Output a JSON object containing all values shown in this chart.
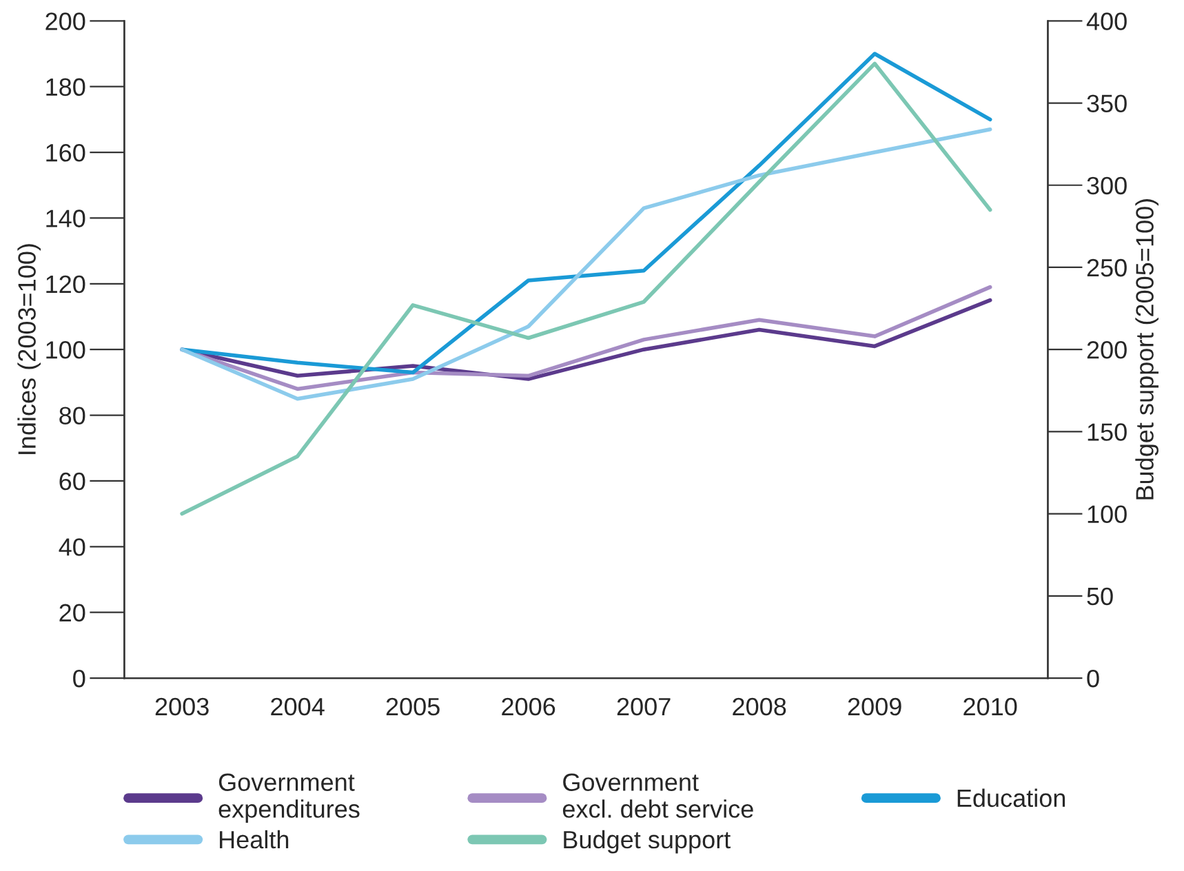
{
  "chart_data": {
    "type": "line",
    "ylabel": "Indices (2003=100)",
    "y2label": "Budget support (2005=100)",
    "categories": [
      "2003",
      "2004",
      "2005",
      "2006",
      "2007",
      "2008",
      "2009",
      "2010"
    ],
    "series": [
      {
        "name": "Government\nexpenditures",
        "color": "#5b3a8c",
        "values": [
          100,
          92,
          95,
          91,
          100,
          106,
          101,
          115
        ]
      },
      {
        "name": "Government\nexcl. debt service",
        "color": "#a58cc4",
        "values": [
          100,
          88,
          93,
          92,
          103,
          109,
          104,
          119
        ]
      },
      {
        "name": "Education",
        "color": "#1a9ad6",
        "values": [
          100,
          96,
          93,
          121,
          124,
          156,
          190,
          170
        ]
      },
      {
        "name": "Health",
        "color": "#8ccbec",
        "values": [
          100,
          85,
          91,
          107,
          143,
          153,
          160,
          167
        ]
      },
      {
        "name": "Budget support",
        "color": "#7cc7b3",
        "axis": "y2",
        "values": [
          100,
          135,
          227,
          207,
          229,
          302,
          374,
          285
        ]
      }
    ],
    "ylim": [
      0,
      200
    ],
    "yticks": [
      0,
      20,
      40,
      60,
      80,
      100,
      120,
      140,
      160,
      180,
      200
    ],
    "y2lim": [
      0,
      400
    ],
    "y2ticks": [
      0,
      50,
      100,
      150,
      200,
      250,
      300,
      350,
      400
    ],
    "grid": false,
    "legend": "bottom",
    "marker": "none",
    "line_style": "solid"
  }
}
